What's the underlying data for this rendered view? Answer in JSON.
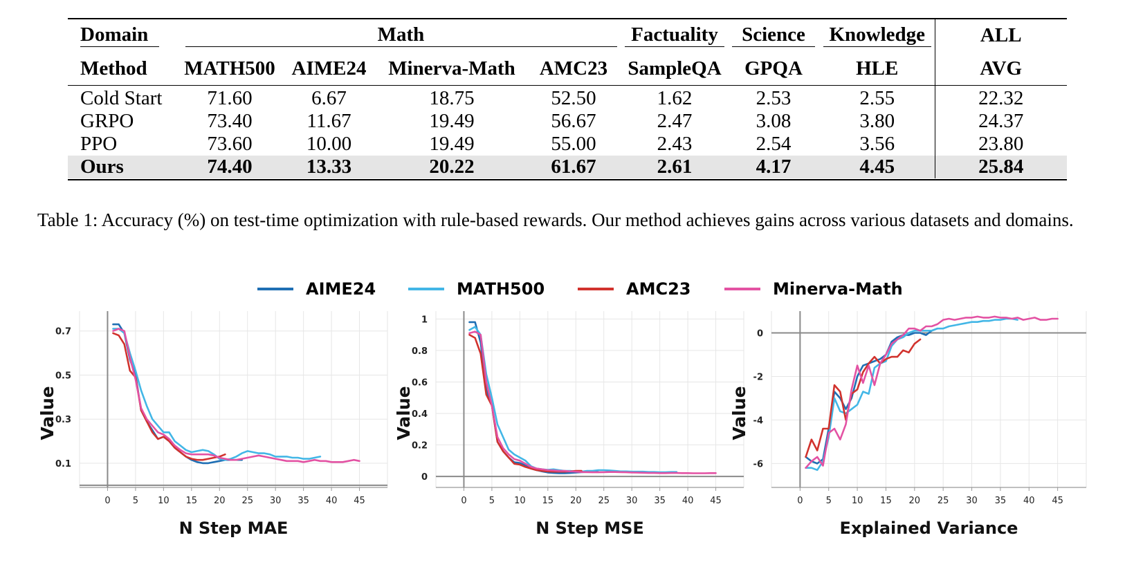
{
  "table": {
    "header_row1": {
      "domain": "Domain",
      "math": "Math",
      "factuality": "Factuality",
      "science": "Science",
      "knowledge": "Knowledge",
      "all": "ALL"
    },
    "header_row2": [
      "Method",
      "MATH500",
      "AIME24",
      "Minerva-Math",
      "AMC23",
      "SampleQA",
      "GPQA",
      "HLE",
      "AVG"
    ],
    "rows": [
      {
        "method": "Cold Start",
        "values": [
          "71.60",
          "6.67",
          "18.75",
          "52.50",
          "1.62",
          "2.53",
          "2.55",
          "22.32"
        ]
      },
      {
        "method": "GRPO",
        "values": [
          "73.40",
          "11.67",
          "19.49",
          "56.67",
          "2.47",
          "3.08",
          "3.80",
          "24.37"
        ]
      },
      {
        "method": "PPO",
        "values": [
          "73.60",
          "10.00",
          "19.49",
          "55.00",
          "2.43",
          "2.54",
          "3.56",
          "23.80"
        ]
      },
      {
        "method": "Ours",
        "values": [
          "74.40",
          "13.33",
          "20.22",
          "61.67",
          "2.61",
          "4.17",
          "4.45",
          "25.84"
        ]
      }
    ]
  },
  "caption": "Table 1: Accuracy (%) on test-time optimization with rule-based rewards. Our method achieves gains across various datasets and domains.",
  "chart_data": [
    {
      "type": "line",
      "title": "",
      "xlabel": "N Step MAE",
      "ylabel": "Value",
      "xlim": [
        -5,
        50
      ],
      "ylim": [
        -0.01,
        0.79
      ],
      "xticks": [
        0,
        5,
        10,
        15,
        20,
        25,
        30,
        35,
        40,
        45
      ],
      "yticks": [
        0.1,
        0.3,
        0.5,
        0.7
      ],
      "ytick_labels": [
        "0.1",
        "0.3",
        "0.5",
        "0.7"
      ],
      "grid": true,
      "series": [
        {
          "name": "AIME24",
          "x": [
            1,
            2,
            3,
            4,
            5,
            6,
            7,
            8,
            9,
            10,
            11,
            12,
            13,
            14,
            15,
            16,
            17,
            18,
            19,
            20,
            21,
            22,
            23,
            24
          ],
          "y": [
            0.73,
            0.73,
            0.69,
            0.57,
            0.5,
            0.34,
            0.29,
            0.25,
            0.21,
            0.22,
            0.2,
            0.17,
            0.15,
            0.13,
            0.115,
            0.105,
            0.1,
            0.1,
            0.105,
            0.11,
            0.115,
            0.115,
            0.115,
            0.115
          ]
        },
        {
          "name": "MATH500",
          "x": [
            1,
            2,
            3,
            4,
            5,
            6,
            7,
            8,
            9,
            10,
            11,
            12,
            13,
            14,
            15,
            16,
            17,
            18,
            19,
            20,
            21,
            22,
            23,
            24,
            25,
            26,
            27,
            28,
            29,
            30,
            31,
            32,
            33,
            34,
            35,
            36,
            37,
            38
          ],
          "y": [
            0.71,
            0.71,
            0.69,
            0.6,
            0.52,
            0.43,
            0.36,
            0.3,
            0.27,
            0.24,
            0.24,
            0.2,
            0.18,
            0.16,
            0.15,
            0.155,
            0.16,
            0.155,
            0.14,
            0.12,
            0.115,
            0.12,
            0.13,
            0.145,
            0.155,
            0.15,
            0.145,
            0.145,
            0.14,
            0.13,
            0.13,
            0.13,
            0.125,
            0.125,
            0.12,
            0.12,
            0.125,
            0.13
          ]
        },
        {
          "name": "AMC23",
          "x": [
            1,
            2,
            3,
            4,
            5,
            6,
            7,
            8,
            9,
            10,
            11,
            12,
            13,
            14,
            15,
            16,
            17,
            18,
            19,
            20,
            21
          ],
          "y": [
            0.69,
            0.68,
            0.64,
            0.52,
            0.49,
            0.34,
            0.29,
            0.24,
            0.21,
            0.22,
            0.2,
            0.17,
            0.15,
            0.13,
            0.12,
            0.115,
            0.115,
            0.12,
            0.125,
            0.13,
            0.14
          ]
        },
        {
          "name": "Minerva-Math",
          "x": [
            1,
            2,
            3,
            4,
            5,
            6,
            7,
            8,
            9,
            10,
            11,
            12,
            13,
            14,
            15,
            16,
            17,
            18,
            19,
            20,
            21,
            22,
            23,
            24,
            25,
            26,
            27,
            28,
            29,
            30,
            31,
            32,
            33,
            34,
            35,
            36,
            37,
            38,
            39,
            40,
            41,
            42,
            43,
            44,
            45
          ],
          "y": [
            0.7,
            0.71,
            0.7,
            0.58,
            0.48,
            0.35,
            0.3,
            0.27,
            0.24,
            0.23,
            0.21,
            0.18,
            0.16,
            0.145,
            0.14,
            0.14,
            0.14,
            0.14,
            0.135,
            0.125,
            0.12,
            0.115,
            0.115,
            0.12,
            0.125,
            0.13,
            0.135,
            0.13,
            0.125,
            0.12,
            0.115,
            0.11,
            0.11,
            0.11,
            0.105,
            0.11,
            0.115,
            0.11,
            0.11,
            0.105,
            0.105,
            0.105,
            0.11,
            0.115,
            0.11
          ]
        }
      ]
    },
    {
      "type": "line",
      "title": "",
      "xlabel": "N Step MSE",
      "ylabel": "Value",
      "xlim": [
        -5,
        50
      ],
      "ylim": [
        -0.07,
        1.05
      ],
      "xticks": [
        0,
        5,
        10,
        15,
        20,
        25,
        30,
        35,
        40,
        45
      ],
      "yticks": [
        0,
        0.2,
        0.4,
        0.6,
        0.8,
        1
      ],
      "ytick_labels": [
        "0",
        "0.2",
        "0.4",
        "0.6",
        "0.8",
        "1"
      ],
      "grid": true,
      "series": [
        {
          "name": "AIME24",
          "x": [
            1,
            2,
            3,
            4,
            5,
            6,
            7,
            8,
            9,
            10,
            11,
            12,
            13,
            14,
            15,
            16,
            17,
            18,
            19,
            20,
            21,
            22,
            23,
            24
          ],
          "y": [
            0.98,
            0.98,
            0.85,
            0.55,
            0.45,
            0.22,
            0.16,
            0.12,
            0.09,
            0.085,
            0.07,
            0.05,
            0.04,
            0.032,
            0.025,
            0.022,
            0.02,
            0.02,
            0.022,
            0.025,
            0.027,
            0.028,
            0.028,
            0.028
          ]
        },
        {
          "name": "MATH500",
          "x": [
            1,
            2,
            3,
            4,
            5,
            6,
            7,
            8,
            9,
            10,
            11,
            12,
            13,
            14,
            15,
            16,
            17,
            18,
            19,
            20,
            21,
            22,
            23,
            24,
            25,
            26,
            27,
            28,
            29,
            30,
            31,
            32,
            33,
            34,
            35,
            36,
            37,
            38
          ],
          "y": [
            0.93,
            0.95,
            0.9,
            0.65,
            0.5,
            0.33,
            0.25,
            0.17,
            0.14,
            0.12,
            0.1,
            0.065,
            0.05,
            0.045,
            0.042,
            0.045,
            0.04,
            0.035,
            0.035,
            0.03,
            0.03,
            0.035,
            0.035,
            0.04,
            0.04,
            0.038,
            0.035,
            0.032,
            0.032,
            0.03,
            0.03,
            0.03,
            0.028,
            0.028,
            0.026,
            0.026,
            0.028,
            0.028
          ]
        },
        {
          "name": "AMC23",
          "x": [
            1,
            2,
            3,
            4,
            5,
            6,
            7,
            8,
            9,
            10,
            11,
            12,
            13,
            14,
            15,
            16,
            17,
            18,
            19,
            20,
            21
          ],
          "y": [
            0.9,
            0.88,
            0.78,
            0.52,
            0.45,
            0.22,
            0.16,
            0.12,
            0.08,
            0.075,
            0.06,
            0.05,
            0.04,
            0.035,
            0.032,
            0.03,
            0.03,
            0.03,
            0.032,
            0.035,
            0.035
          ]
        },
        {
          "name": "Minerva-Math",
          "x": [
            1,
            2,
            3,
            4,
            5,
            6,
            7,
            8,
            9,
            10,
            11,
            12,
            13,
            14,
            15,
            16,
            17,
            18,
            19,
            20,
            21,
            22,
            23,
            24,
            25,
            26,
            27,
            28,
            29,
            30,
            31,
            32,
            33,
            34,
            35,
            36,
            37,
            38,
            39,
            40,
            41,
            42,
            43,
            44,
            45
          ],
          "y": [
            0.91,
            0.92,
            0.9,
            0.6,
            0.45,
            0.25,
            0.18,
            0.14,
            0.11,
            0.1,
            0.08,
            0.06,
            0.05,
            0.045,
            0.04,
            0.038,
            0.035,
            0.035,
            0.032,
            0.03,
            0.028,
            0.027,
            0.026,
            0.026,
            0.027,
            0.028,
            0.028,
            0.027,
            0.026,
            0.025,
            0.024,
            0.023,
            0.022,
            0.022,
            0.021,
            0.021,
            0.022,
            0.022,
            0.021,
            0.021,
            0.02,
            0.02,
            0.02,
            0.021,
            0.021
          ]
        }
      ]
    },
    {
      "type": "line",
      "title": "",
      "xlabel": "Explained Variance",
      "ylabel": "Value",
      "xlim": [
        -5,
        50
      ],
      "ylim": [
        -7.1,
        1.0
      ],
      "xticks": [
        0,
        5,
        10,
        15,
        20,
        25,
        30,
        35,
        40,
        45
      ],
      "yticks": [
        -6,
        -4,
        -2,
        0
      ],
      "ytick_labels": [
        "-6",
        "-4",
        "-2",
        "0"
      ],
      "grid": true,
      "series": [
        {
          "name": "AIME24",
          "x": [
            1,
            2,
            3,
            4,
            5,
            6,
            7,
            8,
            9,
            10,
            11,
            12,
            13,
            14,
            15,
            16,
            17,
            18,
            19,
            20,
            21,
            22,
            23,
            24
          ],
          "y": [
            -5.7,
            -5.9,
            -6.0,
            -5.8,
            -4.4,
            -2.7,
            -3.0,
            -3.5,
            -3.0,
            -2.0,
            -1.5,
            -1.4,
            -1.3,
            -1.2,
            -1.0,
            -0.4,
            -0.2,
            -0.1,
            -0.1,
            0.0,
            0.0,
            -0.1,
            0.1,
            0.2
          ]
        },
        {
          "name": "MATH500",
          "x": [
            1,
            2,
            3,
            4,
            5,
            6,
            7,
            8,
            9,
            10,
            11,
            12,
            13,
            14,
            15,
            16,
            17,
            18,
            19,
            20,
            21,
            22,
            23,
            24,
            25,
            26,
            27,
            28,
            29,
            30,
            31,
            32,
            33,
            34,
            35,
            36,
            37,
            38
          ],
          "y": [
            -6.2,
            -6.2,
            -6.3,
            -5.9,
            -4.8,
            -3.0,
            -3.6,
            -3.7,
            -3.5,
            -3.3,
            -2.7,
            -2.8,
            -1.6,
            -1.4,
            -1.3,
            -0.6,
            -0.3,
            -0.2,
            0.0,
            0.1,
            0.1,
            0.1,
            0.1,
            0.2,
            0.2,
            0.3,
            0.35,
            0.4,
            0.45,
            0.5,
            0.5,
            0.55,
            0.55,
            0.6,
            0.6,
            0.65,
            0.65,
            0.6
          ]
        },
        {
          "name": "AMC23",
          "x": [
            1,
            2,
            3,
            4,
            5,
            6,
            7,
            8,
            9,
            10,
            11,
            12,
            13,
            14,
            15,
            16,
            17,
            18,
            19,
            20,
            21
          ],
          "y": [
            -5.7,
            -4.9,
            -5.4,
            -4.4,
            -4.4,
            -2.4,
            -2.7,
            -4.0,
            -2.8,
            -2.6,
            -1.8,
            -1.4,
            -1.1,
            -1.4,
            -1.2,
            -1.1,
            -1.1,
            -0.8,
            -0.9,
            -0.5,
            -0.3
          ]
        },
        {
          "name": "Minerva-Math",
          "x": [
            1,
            2,
            3,
            4,
            5,
            6,
            7,
            8,
            9,
            10,
            11,
            12,
            13,
            14,
            15,
            16,
            17,
            18,
            19,
            20,
            21,
            22,
            23,
            24,
            25,
            26,
            27,
            28,
            29,
            30,
            31,
            32,
            33,
            34,
            35,
            36,
            37,
            38,
            39,
            40,
            41,
            42,
            43,
            44,
            45
          ],
          "y": [
            -6.2,
            -5.9,
            -5.7,
            -6.1,
            -4.6,
            -4.4,
            -4.9,
            -4.2,
            -2.6,
            -1.5,
            -2.3,
            -1.5,
            -2.4,
            -1.4,
            -1.0,
            -0.5,
            -0.3,
            -0.1,
            0.2,
            0.2,
            0.1,
            0.3,
            0.3,
            0.4,
            0.6,
            0.65,
            0.6,
            0.65,
            0.7,
            0.7,
            0.75,
            0.7,
            0.7,
            0.75,
            0.7,
            0.7,
            0.65,
            0.7,
            0.6,
            0.65,
            0.7,
            0.6,
            0.6,
            0.65,
            0.65
          ]
        }
      ]
    }
  ],
  "legend": [
    {
      "name": "AIME24",
      "color": "#1f6fb4"
    },
    {
      "name": "MATH500",
      "color": "#42b6e6"
    },
    {
      "name": "AMC23",
      "color": "#d1322d"
    },
    {
      "name": "Minerva-Math",
      "color": "#e352a3"
    }
  ]
}
